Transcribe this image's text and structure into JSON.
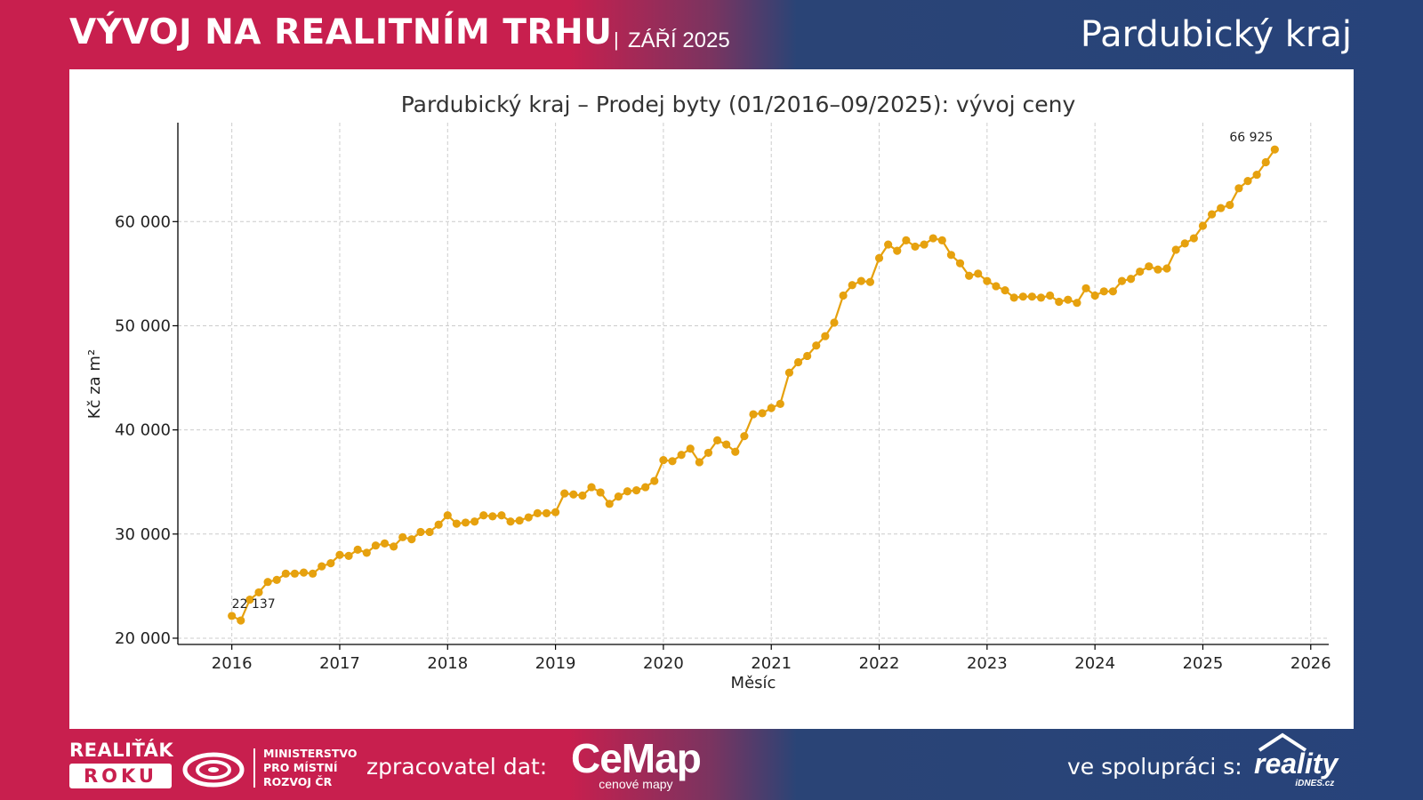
{
  "header": {
    "title": "VÝVOJ NA REALITNÍM TRHU",
    "separator": "|",
    "date": "ZÁŘÍ 2025",
    "region": "Pardubický kraj"
  },
  "colors": {
    "brand_red": "#c81f4e",
    "brand_blue": "#27437a",
    "line": "#e6a10e"
  },
  "footer": {
    "realitak_top": "REALIŤÁK",
    "realitak_box": "ROKU",
    "ministry_lines": [
      "MINISTERSTVO",
      "PRO MÍSTNÍ",
      "ROZVOJ ČR"
    ],
    "processor_label": "zpracovatel dat:",
    "cemap_name": "CeMap",
    "cemap_sub": "cenové mapy",
    "coop_label": "ve spolupráci s:",
    "reality_name": "reality",
    "reality_sub": "iDNES.cz"
  },
  "chart_data": {
    "type": "line",
    "title": "Pardubický kraj – Prodej byty (01/2016–09/2025): vývoj ceny",
    "xlabel": "Měsíc",
    "ylabel": "Kč za m²",
    "x_start": "2016-01",
    "x_ticks": [
      "2016",
      "2017",
      "2018",
      "2019",
      "2020",
      "2021",
      "2022",
      "2023",
      "2024",
      "2025",
      "2026"
    ],
    "y_ticks": [
      20000,
      30000,
      40000,
      50000,
      60000
    ],
    "y_tick_labels": [
      "20 000",
      "30 000",
      "40 000",
      "50 000",
      "60 000"
    ],
    "xlim": [
      "2015-07",
      "2026-03"
    ],
    "ylim": [
      19400,
      69500
    ],
    "grid": true,
    "series": [
      {
        "values": [
          22137,
          21700,
          23700,
          24400,
          25400,
          25600,
          26200,
          26200,
          26300,
          26200,
          26900,
          27200,
          28000,
          27900,
          28500,
          28200,
          28900,
          29100,
          28800,
          29700,
          29500,
          30200,
          30200,
          30900,
          31800,
          31000,
          31100,
          31200,
          31800,
          31700,
          31800,
          31200,
          31300,
          31600,
          32000,
          32000,
          32100,
          33900,
          33800,
          33700,
          34500,
          34000,
          32900,
          33600,
          34100,
          34200,
          34500,
          35100,
          37100,
          37000,
          37600,
          38200,
          36900,
          37800,
          39000,
          38600,
          37900,
          39400,
          41500,
          41600,
          42100,
          42500,
          45500,
          46500,
          47100,
          48100,
          49000,
          50300,
          52900,
          53900,
          54300,
          54200,
          56500,
          57800,
          57200,
          58200,
          57600,
          57800,
          58400,
          58200,
          56800,
          56000,
          54800,
          55000,
          54300,
          53800,
          53400,
          52700,
          52800,
          52800,
          52700,
          52900,
          52300,
          52500,
          52200,
          53600,
          52900,
          53300,
          53300,
          54300,
          54500,
          55200,
          55700,
          55400,
          55500,
          57300,
          57900,
          58400,
          59600,
          60700,
          61300,
          61600,
          63200,
          63900,
          64500,
          65700,
          66925
        ]
      }
    ],
    "annotations": [
      {
        "label": "22 137",
        "at_index": 0
      },
      {
        "label": "66 925",
        "at_index": 116
      }
    ]
  }
}
